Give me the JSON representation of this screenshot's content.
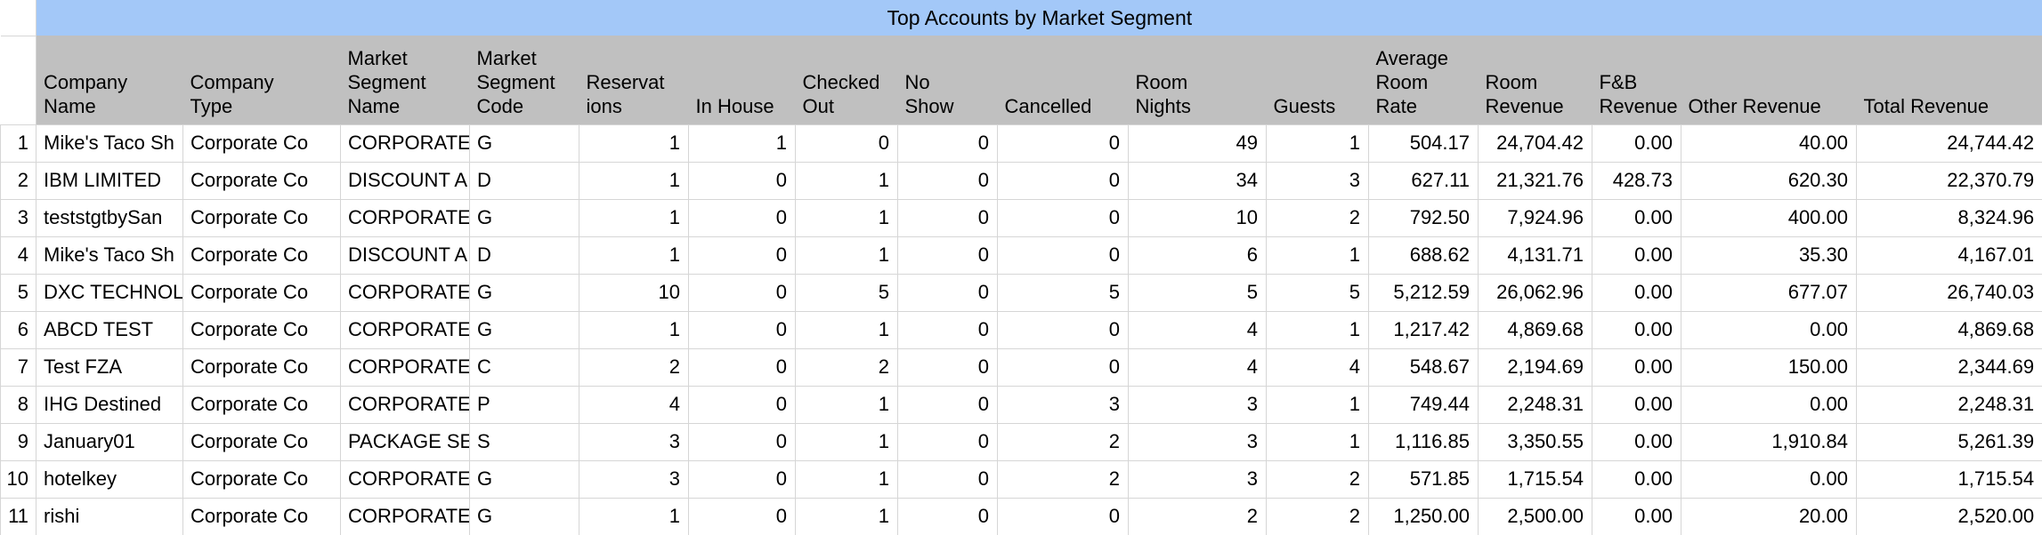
{
  "title": "Top Accounts by Market Segment",
  "colors": {
    "title_band": "#a3c8f8",
    "header_band": "#c0c0c0",
    "grid_line": "#d6d6d6",
    "text": "#000000",
    "cell_background": "#ffffff"
  },
  "table": {
    "columns": [
      {
        "label": "Company\nName"
      },
      {
        "label": "Company\nType"
      },
      {
        "label": "Market\nSegment\nName"
      },
      {
        "label": "Market\nSegment\nCode"
      },
      {
        "label": "Reservat\nions"
      },
      {
        "label": "In House"
      },
      {
        "label": "Checked\nOut"
      },
      {
        "label": "No\nShow"
      },
      {
        "label": "Cancelled"
      },
      {
        "label": "Room\nNights"
      },
      {
        "label": "Guests"
      },
      {
        "label": "Average\nRoom\nRate"
      },
      {
        "label": "Room\nRevenue"
      },
      {
        "label": "F&B\nRevenue"
      },
      {
        "label": "Other Revenue"
      },
      {
        "label": "Total Revenue"
      }
    ],
    "rows": [
      {
        "num": "1",
        "cells": [
          "Mike's Taco Sh",
          "Corporate Co",
          "CORPORATE",
          "G",
          "1",
          "1",
          "0",
          "0",
          "0",
          "49",
          "1",
          "504.17",
          "24,704.42",
          "0.00",
          "40.00",
          "24,744.42"
        ]
      },
      {
        "num": "2",
        "cells": [
          "IBM LIMITED",
          "Corporate Co",
          "DISCOUNT A",
          "D",
          "1",
          "0",
          "1",
          "0",
          "0",
          "34",
          "3",
          "627.11",
          "21,321.76",
          "428.73",
          "620.30",
          "22,370.79"
        ]
      },
      {
        "num": "3",
        "cells": [
          "teststgtbySan",
          "Corporate Co",
          "CORPORATE",
          "G",
          "1",
          "0",
          "1",
          "0",
          "0",
          "10",
          "2",
          "792.50",
          "7,924.96",
          "0.00",
          "400.00",
          "8,324.96"
        ]
      },
      {
        "num": "4",
        "cells": [
          "Mike's Taco Sh",
          "Corporate Co",
          "DISCOUNT A",
          "D",
          "1",
          "0",
          "1",
          "0",
          "0",
          "6",
          "1",
          "688.62",
          "4,131.71",
          "0.00",
          "35.30",
          "4,167.01"
        ]
      },
      {
        "num": "5",
        "cells": [
          "DXC TECHNOL",
          "Corporate Co",
          "CORPORATE",
          "G",
          "10",
          "0",
          "5",
          "0",
          "5",
          "5",
          "5",
          "5,212.59",
          "26,062.96",
          "0.00",
          "677.07",
          "26,740.03"
        ]
      },
      {
        "num": "6",
        "cells": [
          "ABCD TEST",
          "Corporate Co",
          "CORPORATE",
          "G",
          "1",
          "0",
          "1",
          "0",
          "0",
          "4",
          "1",
          "1,217.42",
          "4,869.68",
          "0.00",
          "0.00",
          "4,869.68"
        ]
      },
      {
        "num": "7",
        "cells": [
          "Test FZA",
          "Corporate Co",
          "CORPORATE",
          "C",
          "2",
          "0",
          "2",
          "0",
          "0",
          "4",
          "4",
          "548.67",
          "2,194.69",
          "0.00",
          "150.00",
          "2,344.69"
        ]
      },
      {
        "num": "8",
        "cells": [
          "IHG Destined",
          "Corporate Co",
          "CORPORATE",
          "P",
          "4",
          "0",
          "1",
          "0",
          "3",
          "3",
          "1",
          "749.44",
          "2,248.31",
          "0.00",
          "0.00",
          "2,248.31"
        ]
      },
      {
        "num": "9",
        "cells": [
          "January01",
          "Corporate Co",
          "PACKAGE SE",
          "S",
          "3",
          "0",
          "1",
          "0",
          "2",
          "3",
          "1",
          "1,116.85",
          "3,350.55",
          "0.00",
          "1,910.84",
          "5,261.39"
        ]
      },
      {
        "num": "10",
        "cells": [
          "hotelkey",
          "Corporate Co",
          "CORPORATE",
          "G",
          "3",
          "0",
          "1",
          "0",
          "2",
          "3",
          "2",
          "571.85",
          "1,715.54",
          "0.00",
          "0.00",
          "1,715.54"
        ]
      },
      {
        "num": "11",
        "cells": [
          "rishi",
          "Corporate Co",
          "CORPORATE",
          "G",
          "1",
          "0",
          "1",
          "0",
          "0",
          "2",
          "2",
          "1,250.00",
          "2,500.00",
          "0.00",
          "20.00",
          "2,520.00"
        ]
      }
    ]
  }
}
